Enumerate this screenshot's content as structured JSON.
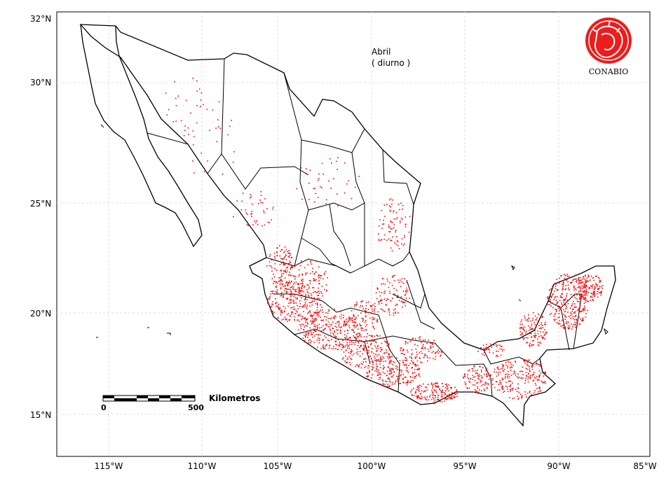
{
  "map": {
    "annotation_month": "Abril",
    "annotation_period": "( diurno )",
    "logo_text": "CONABIO",
    "x_ticks": [
      "115°W",
      "110°W",
      "105°W",
      "100°W",
      "95°W",
      "90°W",
      "85°W"
    ],
    "y_ticks": [
      "32°N",
      "30°N",
      "25°N",
      "20°N",
      "15°N"
    ],
    "scalebar": {
      "label": "Kilometros",
      "start": "0",
      "end": "500"
    },
    "colors": {
      "hotspot": "#ff0000",
      "boundary": "#000000",
      "grid": "#d9d9d9",
      "logo": "#ee1c1c"
    }
  }
}
